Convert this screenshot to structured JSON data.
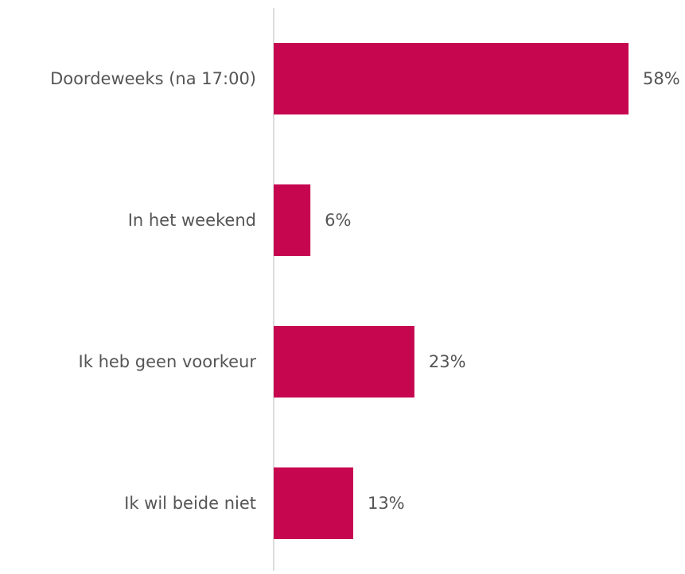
{
  "chart_data": {
    "type": "bar",
    "orientation": "horizontal",
    "title": "",
    "xlabel": "",
    "ylabel": "",
    "categories": [
      "Doordeweeks (na 17:00)",
      "In het weekend",
      "Ik heb geen voorkeur",
      "Ik wil beide niet"
    ],
    "values": [
      58,
      6,
      23,
      13
    ],
    "value_labels": [
      "58%",
      "6%",
      "23%",
      "13%"
    ],
    "unit": "%",
    "xlim": [
      0,
      58
    ],
    "grid": false,
    "legend": "none",
    "bar_color": "#C70650",
    "axis_color": "#D0D0D0",
    "text_color": "#555555"
  }
}
